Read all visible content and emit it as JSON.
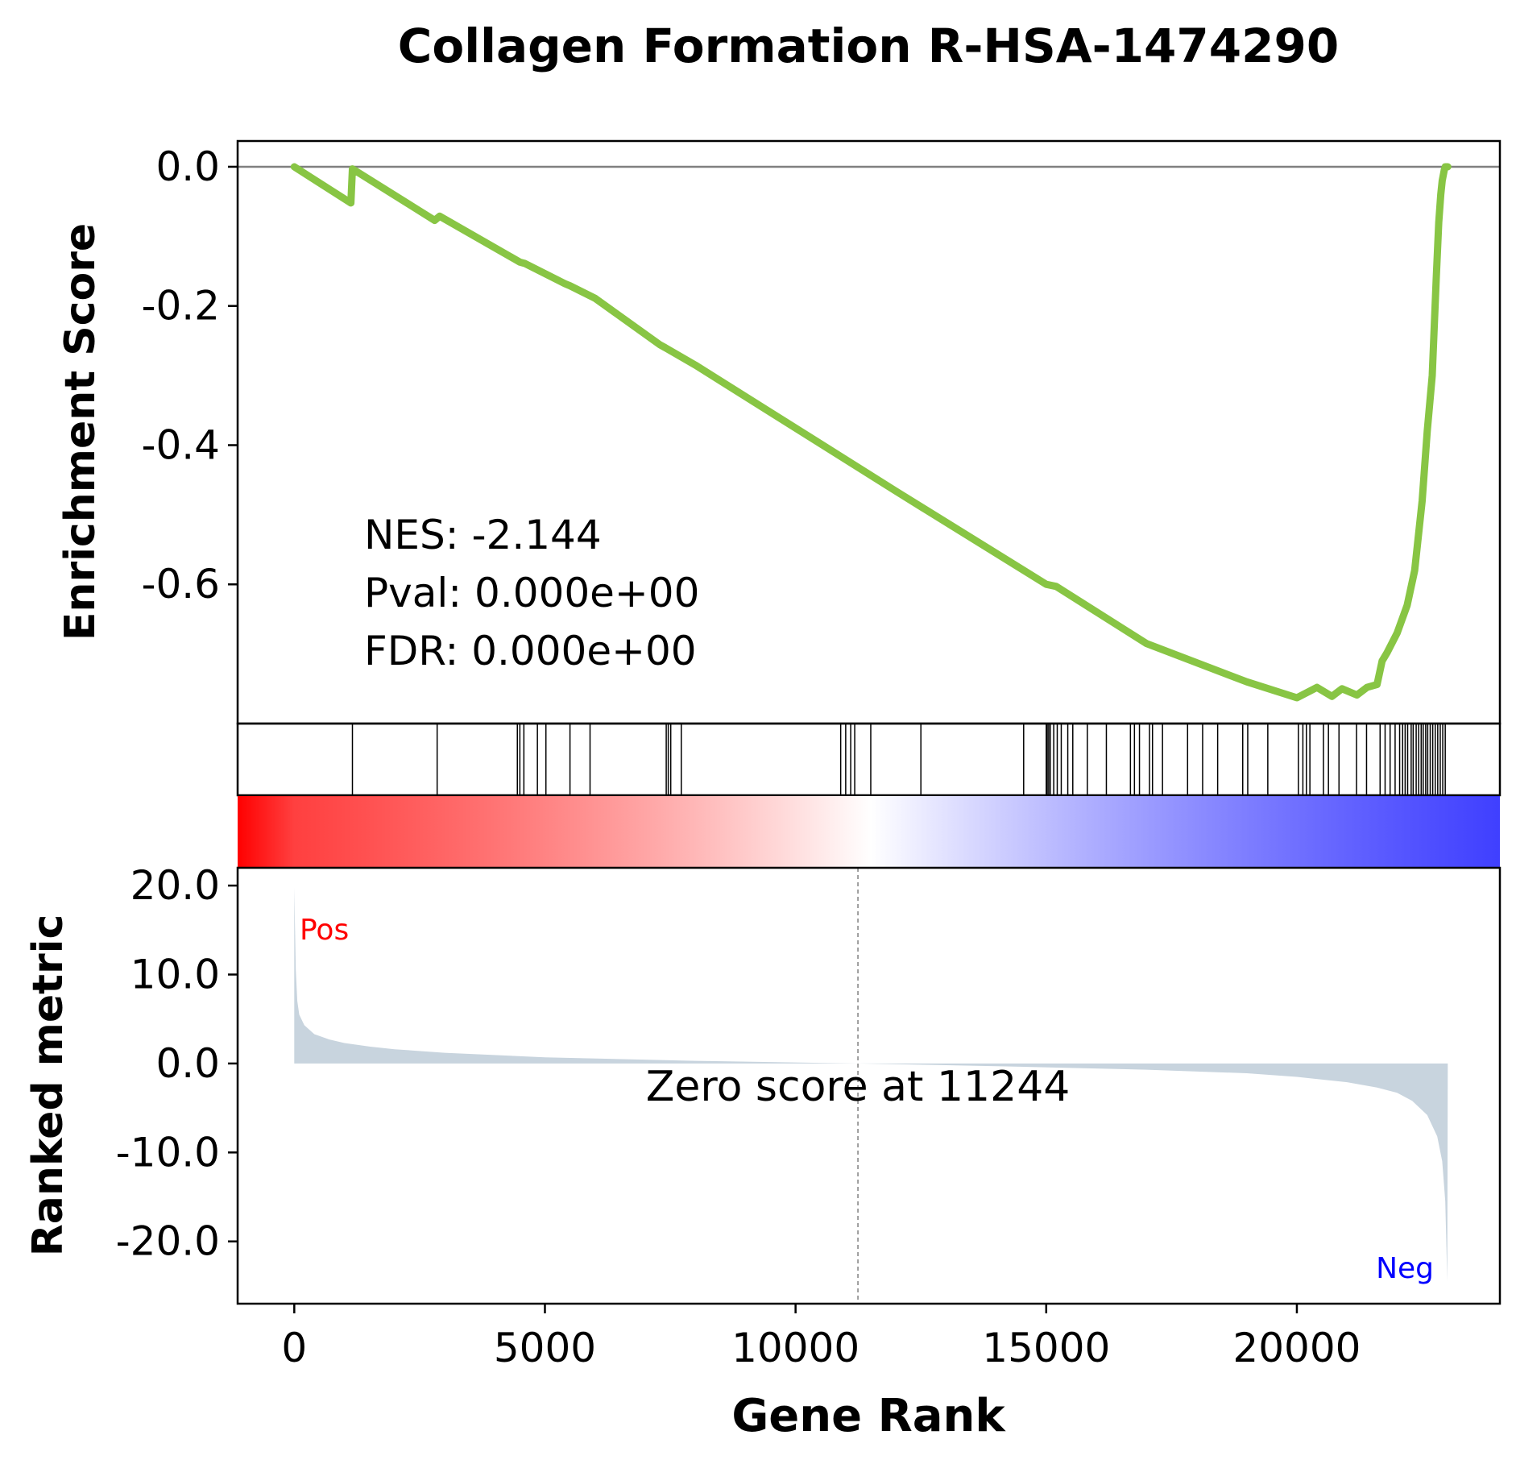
{
  "chart_data": {
    "type": "line",
    "title": "Collagen Formation R-HSA-1474290",
    "xlabel": "Gene Rank",
    "xlim": [
      -1130,
      24050
    ],
    "x_ticks": [
      0,
      5000,
      10000,
      15000,
      20000
    ],
    "x_tick_labels": [
      "0",
      "5000",
      "10000",
      "15000",
      "20000"
    ],
    "enrichment": {
      "ylabel": "Enrichment Score",
      "ylim": [
        -0.8,
        0.037
      ],
      "y_ticks": [
        0.0,
        -0.2,
        -0.4,
        -0.6
      ],
      "y_tick_labels": [
        "0.0",
        "-0.2",
        "-0.4",
        "-0.6"
      ],
      "color": "#88c544",
      "zero_line_color": "#808080",
      "running_score": {
        "x": [
          0,
          1130,
          1160,
          1180,
          2800,
          2900,
          4500,
          4600,
          5400,
          5500,
          6000,
          7300,
          7400,
          8000,
          12000,
          15000,
          15200,
          17000,
          19000,
          20000,
          20400,
          20700,
          20900,
          21200,
          21400,
          21600,
          21700,
          21800,
          22000,
          22200,
          22350,
          22500,
          22600,
          22700,
          22780,
          22830,
          22870,
          22900,
          22940,
          22960,
          22980,
          23000,
          23010
        ],
        "y": [
          0.0,
          -0.052,
          -0.003,
          -0.004,
          -0.077,
          -0.071,
          -0.137,
          -0.139,
          -0.168,
          -0.171,
          -0.189,
          -0.256,
          -0.26,
          -0.285,
          -0.466,
          -0.6,
          -0.603,
          -0.685,
          -0.74,
          -0.763,
          -0.748,
          -0.761,
          -0.75,
          -0.759,
          -0.748,
          -0.744,
          -0.71,
          -0.698,
          -0.67,
          -0.63,
          -0.58,
          -0.48,
          -0.38,
          -0.3,
          -0.16,
          -0.08,
          -0.04,
          -0.02,
          -0.005,
          0.0,
          0.0,
          0.0,
          0.0
        ]
      },
      "annotations": [
        "NES: -2.144",
        "Pval: 0.000e+00",
        "FDR: 0.000e+00"
      ]
    },
    "hits": {
      "gene_ranks": [
        1160,
        2850,
        4450,
        4500,
        4580,
        4850,
        5020,
        5500,
        5900,
        7420,
        7460,
        7510,
        7720,
        10900,
        11000,
        11100,
        11180,
        11500,
        12500,
        14550,
        15000,
        15020,
        15050,
        15080,
        15150,
        15220,
        15300,
        15430,
        15530,
        15820,
        16200,
        16680,
        16760,
        16860,
        17060,
        17120,
        17320,
        17820,
        18120,
        18420,
        18920,
        19020,
        19420,
        20030,
        20120,
        20190,
        20260,
        20530,
        20630,
        20840,
        21190,
        21390,
        21660,
        21760,
        21860,
        21960,
        22050,
        22110,
        22160,
        22210,
        22280,
        22320,
        22380,
        22430,
        22480,
        22520,
        22570,
        22610,
        22660,
        22710,
        22760,
        22810,
        22860,
        22910,
        22960
      ]
    },
    "gradient": {
      "colors": [
        "#ff0000",
        "#ffffff",
        "#0000ff"
      ]
    },
    "ranked_metric": {
      "ylabel": "Ranked metric",
      "ylim": [
        -27,
        22
      ],
      "y_ticks": [
        20.0,
        10.0,
        0.0,
        -10.0,
        -20.0
      ],
      "y_tick_labels": [
        "20.0",
        "10.0",
        "0.0",
        "-10.0",
        "-20.0"
      ],
      "fill_color": "#c8d4de",
      "curve": {
        "x": [
          0,
          30,
          60,
          100,
          200,
          400,
          700,
          1000,
          1500,
          2000,
          3000,
          5000,
          8000,
          11244,
          14000,
          17000,
          19000,
          20000,
          21000,
          21600,
          22000,
          22300,
          22600,
          22800,
          22900,
          22960,
          23000,
          23010
        ],
        "y": [
          19.8,
          10.5,
          7.0,
          5.5,
          4.3,
          3.3,
          2.7,
          2.3,
          1.9,
          1.6,
          1.2,
          0.7,
          0.3,
          0.0,
          -0.3,
          -0.7,
          -1.1,
          -1.5,
          -2.1,
          -2.7,
          -3.3,
          -4.2,
          -5.8,
          -8.2,
          -11.0,
          -15.5,
          -24.5,
          0.0
        ]
      },
      "zero_crossing": 11244,
      "zero_label": "Zero score at 11244",
      "pos_label": "Pos",
      "neg_label": "Neg",
      "pos_color": "#ff0000",
      "neg_color": "#0000ff"
    }
  }
}
